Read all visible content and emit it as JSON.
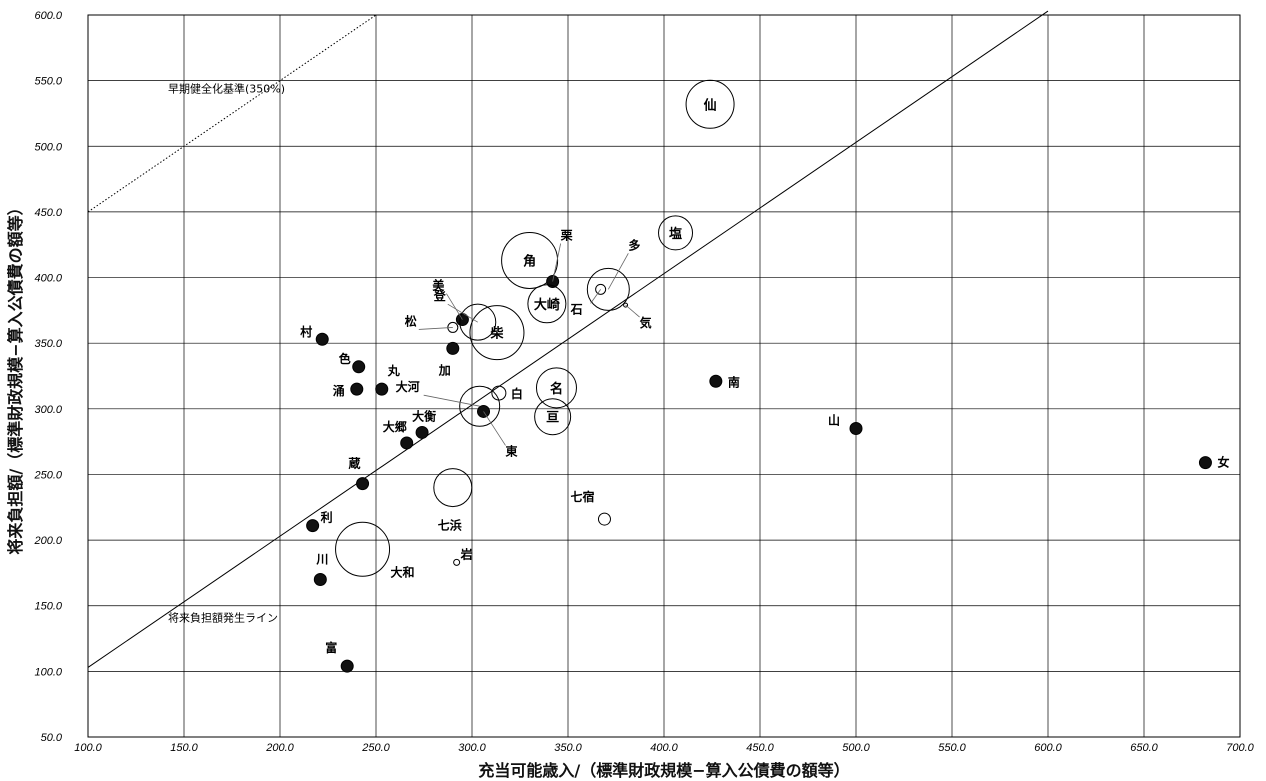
{
  "chart_data": {
    "type": "scatter",
    "xlabel": "充当可能歳入/（標準財政規模−算入公債費の額等）",
    "ylabel": "将来負担額/（標準財政規模−算入公債費の額等）",
    "xlim": [
      100,
      700
    ],
    "ylim": [
      50,
      600
    ],
    "x_ticks": [
      "100.0",
      "150.0",
      "200.0",
      "250.0",
      "300.0",
      "350.0",
      "400.0",
      "450.0",
      "500.0",
      "550.0",
      "600.0",
      "650.0",
      "700.0"
    ],
    "y_ticks": [
      "50.0",
      "100.0",
      "150.0",
      "200.0",
      "250.0",
      "300.0",
      "350.0",
      "400.0",
      "450.0",
      "500.0",
      "550.0",
      "600.0"
    ],
    "grid": true,
    "reference_lines": [
      {
        "label": "将来負担額発生ライン",
        "points": [
          [
            100,
            103
          ],
          [
            600,
            603
          ]
        ],
        "style": "solid"
      },
      {
        "label": "早期健全化基準(350%)",
        "points": [
          [
            100,
            450
          ],
          [
            250,
            600
          ]
        ],
        "style": "dotted"
      }
    ],
    "points": [
      {
        "label": "仙",
        "x": 424,
        "y": 532,
        "size": 24,
        "filled": false,
        "label_pos": "inside"
      },
      {
        "label": "塩",
        "x": 406,
        "y": 434,
        "size": 17,
        "filled": false,
        "label_pos": "inside"
      },
      {
        "label": "角",
        "x": 330,
        "y": 413,
        "size": 28,
        "filled": false,
        "label_pos": "inside"
      },
      {
        "label": "栗",
        "x": 342,
        "y": 397,
        "size": 6,
        "filled": true,
        "label_pos": "栗"
      },
      {
        "label": "大崎",
        "x": 339,
        "y": 380,
        "size": 19,
        "filled": false,
        "label_pos": "inside"
      },
      {
        "label": "多",
        "x": 371,
        "y": 391,
        "size": 21,
        "filled": false,
        "label_pos": "多"
      },
      {
        "label": "石",
        "x": 367,
        "y": 391,
        "size": 5,
        "filled": false,
        "label_pos": "石"
      },
      {
        "label": "気",
        "x": 380,
        "y": 379,
        "size": 2,
        "filled": false,
        "label_pos": "気"
      },
      {
        "label": "美",
        "x": 295,
        "y": 368,
        "size": 6,
        "filled": true,
        "label_pos": "美"
      },
      {
        "label": "登",
        "x": 303,
        "y": 366,
        "size": 18,
        "filled": false,
        "label_pos": "登"
      },
      {
        "label": "松",
        "x": 290,
        "y": 362,
        "size": 5,
        "filled": false,
        "label_pos": "松"
      },
      {
        "label": "柴",
        "x": 313,
        "y": 358,
        "size": 27,
        "filled": false,
        "label_pos": "inside"
      },
      {
        "label": "加",
        "x": 290,
        "y": 346,
        "size": 6,
        "filled": true,
        "label_pos": "加"
      },
      {
        "label": "村",
        "x": 222,
        "y": 353,
        "size": 6,
        "filled": true,
        "label_pos": "村"
      },
      {
        "label": "色",
        "x": 241,
        "y": 332,
        "size": 6,
        "filled": true,
        "label_pos": "色"
      },
      {
        "label": "丸",
        "x": 253,
        "y": 315,
        "size": 6,
        "filled": true,
        "label_pos": "丸"
      },
      {
        "label": "涌",
        "x": 240,
        "y": 315,
        "size": 6,
        "filled": true,
        "label_pos": "涌"
      },
      {
        "label": "名",
        "x": 344,
        "y": 316,
        "size": 20,
        "filled": false,
        "label_pos": "inside"
      },
      {
        "label": "南",
        "x": 427,
        "y": 321,
        "size": 6,
        "filled": true,
        "label_pos": "南"
      },
      {
        "label": "大河",
        "x": 304,
        "y": 302,
        "size": 20,
        "filled": false,
        "label_pos": "大河"
      },
      {
        "label": "白",
        "x": 314,
        "y": 312,
        "size": 7,
        "filled": false,
        "label_pos": "白"
      },
      {
        "label": "東",
        "x": 306,
        "y": 298,
        "size": 6,
        "filled": true,
        "label_pos": "東"
      },
      {
        "label": "亘",
        "x": 342,
        "y": 294,
        "size": 18,
        "filled": false,
        "label_pos": "inside"
      },
      {
        "label": "山",
        "x": 500,
        "y": 285,
        "size": 6,
        "filled": true,
        "label_pos": "山"
      },
      {
        "label": "女",
        "x": 682,
        "y": 259,
        "size": 6,
        "filled": true,
        "label_pos": "女"
      },
      {
        "label": "大衡",
        "x": 274,
        "y": 282,
        "size": 6,
        "filled": true,
        "label_pos": "大衡"
      },
      {
        "label": "大郷",
        "x": 266,
        "y": 274,
        "size": 6,
        "filled": true,
        "label_pos": "大郷"
      },
      {
        "label": "蔵",
        "x": 243,
        "y": 243,
        "size": 6,
        "filled": true,
        "label_pos": "蔵"
      },
      {
        "label": "七浜",
        "x": 290,
        "y": 240,
        "size": 19,
        "filled": false,
        "label_pos": "七浜"
      },
      {
        "label": "七宿",
        "x": 369,
        "y": 216,
        "size": 6,
        "filled": false,
        "label_pos": "七宿"
      },
      {
        "label": "利",
        "x": 217,
        "y": 211,
        "size": 6,
        "filled": true,
        "label_pos": "利"
      },
      {
        "label": "大和",
        "x": 243,
        "y": 193,
        "size": 27,
        "filled": false,
        "label_pos": "大和"
      },
      {
        "label": "岩",
        "x": 292,
        "y": 183,
        "size": 3,
        "filled": false,
        "label_pos": "岩"
      },
      {
        "label": "川",
        "x": 221,
        "y": 170,
        "size": 6,
        "filled": true,
        "label_pos": "川"
      },
      {
        "label": "富",
        "x": 235,
        "y": 104,
        "size": 6,
        "filled": true,
        "label_pos": "富"
      }
    ]
  }
}
